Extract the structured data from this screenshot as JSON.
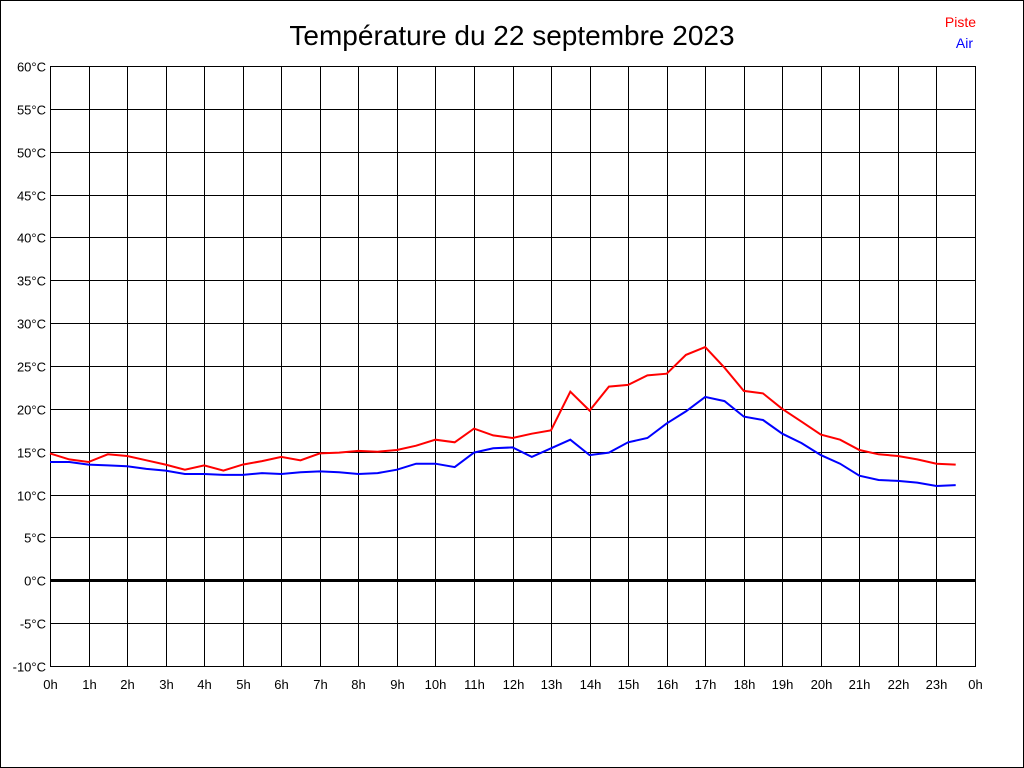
{
  "chart_data": {
    "type": "line",
    "title": "Température du 22 septembre 2023",
    "xlabel": "",
    "ylabel": "",
    "ylim": [
      -10,
      60
    ],
    "xlim": [
      0,
      24
    ],
    "grid": true,
    "legend_position": "top-right",
    "y_ticks": [
      "60°C",
      "55°C",
      "50°C",
      "45°C",
      "40°C",
      "35°C",
      "30°C",
      "25°C",
      "20°C",
      "15°C",
      "10°C",
      "5°C",
      "0°C",
      "-5°C",
      "-10°C"
    ],
    "y_tick_values": [
      60,
      55,
      50,
      45,
      40,
      35,
      30,
      25,
      20,
      15,
      10,
      5,
      0,
      -5,
      -10
    ],
    "x_ticks": [
      "0h",
      "1h",
      "2h",
      "3h",
      "4h",
      "5h",
      "6h",
      "7h",
      "8h",
      "9h",
      "10h",
      "11h",
      "12h",
      "13h",
      "14h",
      "15h",
      "16h",
      "17h",
      "18h",
      "19h",
      "20h",
      "21h",
      "22h",
      "23h",
      "0h"
    ],
    "x": [
      0,
      0.5,
      1,
      1.5,
      2,
      2.5,
      3,
      3.5,
      4,
      4.5,
      5,
      5.5,
      6,
      6.5,
      7,
      7.5,
      8,
      8.5,
      9,
      9.5,
      10,
      10.5,
      11,
      11.5,
      12,
      12.5,
      13,
      13.5,
      14,
      14.5,
      15,
      15.5,
      16,
      16.5,
      17,
      17.5,
      18,
      18.5,
      19,
      19.5,
      20,
      20.5,
      21,
      21.5,
      22,
      22.5,
      23,
      23.5
    ],
    "series": [
      {
        "name": "Piste",
        "color": "#ff0000",
        "values": [
          14.8,
          14.1,
          13.8,
          14.7,
          14.5,
          14.0,
          13.5,
          12.9,
          13.4,
          12.8,
          13.5,
          13.9,
          14.4,
          14.0,
          14.8,
          14.9,
          15.1,
          15.0,
          15.2,
          15.7,
          16.4,
          16.1,
          17.7,
          16.9,
          16.6,
          17.1,
          17.5,
          22.0,
          19.8,
          22.6,
          22.8,
          23.9,
          24.1,
          26.3,
          27.2,
          24.8,
          22.1,
          21.8,
          20.0,
          18.5,
          17.0,
          16.4,
          15.2,
          14.7,
          14.5,
          14.1,
          13.6,
          13.5
        ]
      },
      {
        "name": "Air",
        "color": "#0000ff",
        "values": [
          13.8,
          13.8,
          13.5,
          13.4,
          13.3,
          13.0,
          12.8,
          12.4,
          12.4,
          12.3,
          12.3,
          12.5,
          12.4,
          12.6,
          12.7,
          12.6,
          12.4,
          12.5,
          12.9,
          13.6,
          13.6,
          13.2,
          14.9,
          15.4,
          15.5,
          14.4,
          15.4,
          16.4,
          14.6,
          14.9,
          16.1,
          16.6,
          18.3,
          19.7,
          21.4,
          20.9,
          19.1,
          18.7,
          17.1,
          16.0,
          14.6,
          13.6,
          12.2,
          11.7,
          11.6,
          11.4,
          11.0,
          11.1
        ]
      }
    ]
  }
}
